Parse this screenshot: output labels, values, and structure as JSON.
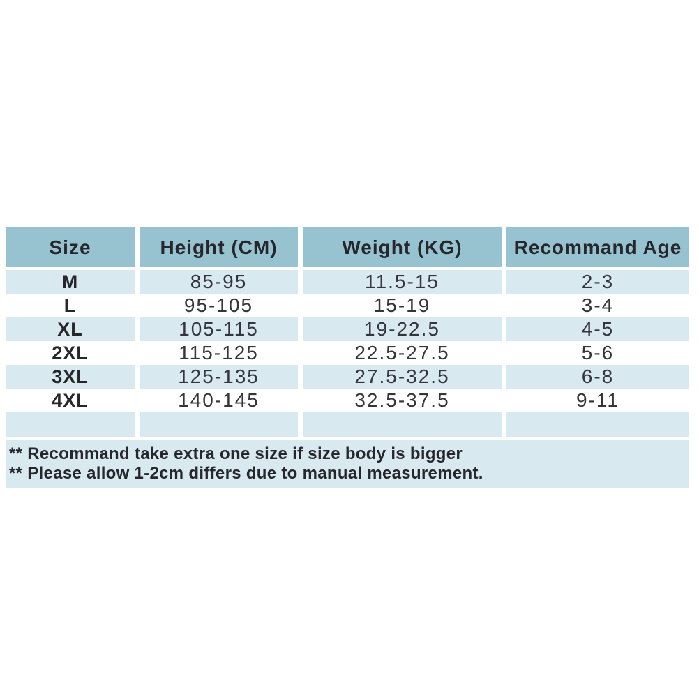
{
  "size_chart": {
    "headers": [
      "Size",
      "Height (CM)",
      "Weight (KG)",
      "Recommand Age"
    ],
    "rows": [
      [
        "M",
        "85-95",
        "11.5-15",
        "2-3"
      ],
      [
        "L",
        "95-105",
        "15-19",
        "3-4"
      ],
      [
        "XL",
        "105-115",
        "19-22.5",
        "4-5"
      ],
      [
        "2XL",
        "115-125",
        "22.5-27.5",
        "5-6"
      ],
      [
        "3XL",
        "125-135",
        "27.5-32.5",
        "6-8"
      ],
      [
        "4XL",
        "140-145",
        "32.5-37.5",
        "9-11"
      ]
    ],
    "footnotes": [
      "** Recommand take extra one size if size body is bigger",
      "** Please allow 1-2cm differs due to manual measurement."
    ],
    "colors": {
      "header_bg": "#96c3cf",
      "stripe_bg": "#d9e9f0",
      "white_bg": "#ffffff",
      "header_text": "#26262c",
      "cell_text": "#35353d"
    }
  }
}
